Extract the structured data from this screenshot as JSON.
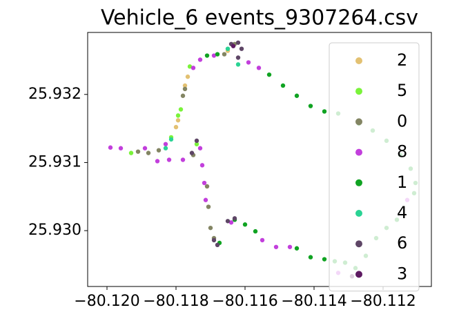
{
  "chart_data": {
    "type": "scatter",
    "title": "Vehicle_6 events_9307264.csv",
    "xlim": [
      -80.12056,
      -80.1106
    ],
    "ylim": [
      25.92918,
      25.93291
    ],
    "xticks": [
      {
        "value": -80.12,
        "label": "−80.120"
      },
      {
        "value": -80.118,
        "label": "−80.118"
      },
      {
        "value": -80.116,
        "label": "−80.116"
      },
      {
        "value": -80.114,
        "label": "−80.114"
      },
      {
        "value": -80.112,
        "label": "−80.112"
      }
    ],
    "yticks": [
      {
        "value": 25.93,
        "label": "25.930"
      },
      25.931,
      25.932
    ],
    "legend": "upper right",
    "series": [
      {
        "name": "2",
        "color": "#e3c172",
        "x": [
          -80.11774,
          -80.11766,
          -80.118,
          -80.11794,
          -80.1165
        ],
        "values": [
          25.93213,
          25.93226,
          25.93152,
          25.93162,
          25.93264
        ]
      },
      {
        "name": "5",
        "color": "#7af33a",
        "x": [
          -80.1193,
          -80.11794,
          -80.11786,
          -80.1176,
          -80.11814,
          -80.1174
        ],
        "values": [
          25.93114,
          25.93169,
          25.93178,
          25.93241,
          25.93137,
          25.93127
        ]
      },
      {
        "name": "0",
        "color": "#838563",
        "x": [
          -80.1191,
          -80.1188,
          -80.1185,
          -80.1178,
          -80.11774,
          -80.1175,
          -80.1171,
          -80.11706,
          -80.117,
          -80.1169,
          -80.1166,
          -80.1163
        ],
        "values": [
          25.93116,
          25.93114,
          25.93118,
          25.93198,
          25.93208,
          25.93111,
          25.93065,
          25.93035,
          25.93004,
          25.92989,
          25.93259,
          25.93274
        ]
      },
      {
        "name": "8",
        "color": "#c23fdc",
        "x": [
          -80.1199,
          -80.1196,
          -80.1189,
          -80.1183,
          -80.1182,
          -80.11854,
          -80.1175,
          -80.1173,
          -80.1169,
          -80.1159,
          -80.1156,
          -80.1173,
          -80.11724,
          -80.11718,
          -80.11714,
          -80.1155,
          -80.1151,
          -80.1147,
          -80.1113,
          -80.1133,
          -80.1164,
          -80.1178
        ],
        "values": [
          25.93122,
          25.93121,
          25.93121,
          25.93127,
          25.93104,
          25.93102,
          25.93239,
          25.93251,
          25.93257,
          25.93247,
          25.93239,
          25.93121,
          25.93096,
          25.9307,
          25.93045,
          25.92986,
          25.92976,
          25.92976,
          25.93045,
          25.92938,
          25.93012,
          25.93104
        ]
      },
      {
        "name": "1",
        "color": "#10a322",
        "x": [
          -80.1171,
          -80.1168,
          -80.1153,
          -80.1149,
          -80.1145,
          -80.1141,
          -80.1137,
          -80.1133,
          -80.1163,
          -80.116,
          -80.1157,
          -80.1145,
          -80.1141,
          -80.1137,
          -80.1134,
          -80.1131,
          -80.1122,
          -80.1119,
          -80.1116,
          -80.11674,
          -80.1127,
          -80.1123,
          -80.1119,
          -80.1115,
          -80.1112,
          -80.11106,
          -80.1111,
          -80.1125,
          -80.1128
        ],
        "values": [
          25.93257,
          25.93259,
          25.93229,
          25.93213,
          25.93198,
          25.93183,
          25.93175,
          25.93172,
          25.93016,
          25.93009,
          25.92999,
          25.92974,
          25.92961,
          25.92958,
          25.92955,
          25.92953,
          25.92989,
          25.93004,
          25.93016,
          25.92982,
          25.93157,
          25.93147,
          25.93132,
          25.93111,
          25.93091,
          25.9307,
          25.93055,
          25.92963,
          25.92945
        ]
      },
      {
        "name": "4",
        "color": "#2ad394",
        "x": [
          -80.1165,
          -80.1162,
          -80.11814,
          -80.1183
        ],
        "values": [
          25.93267,
          25.93244,
          25.93134,
          25.93121
        ]
      },
      {
        "name": "6",
        "color": "#5e4666",
        "x": [
          -80.1164,
          -80.1162,
          -80.1161,
          -80.1162,
          -80.1174,
          -80.11754,
          -80.1168,
          -80.1169,
          -80.1165,
          -80.1163
        ],
        "values": [
          25.93274,
          25.93276,
          25.93267,
          25.93254,
          25.93132,
          25.93114,
          25.92979,
          25.92986,
          25.93014,
          25.93018
        ]
      },
      {
        "name": "3",
        "color": "#5e1a62",
        "x": [
          -80.1129,
          -80.11634
        ],
        "values": [
          25.92933,
          25.93271
        ]
      }
    ]
  }
}
